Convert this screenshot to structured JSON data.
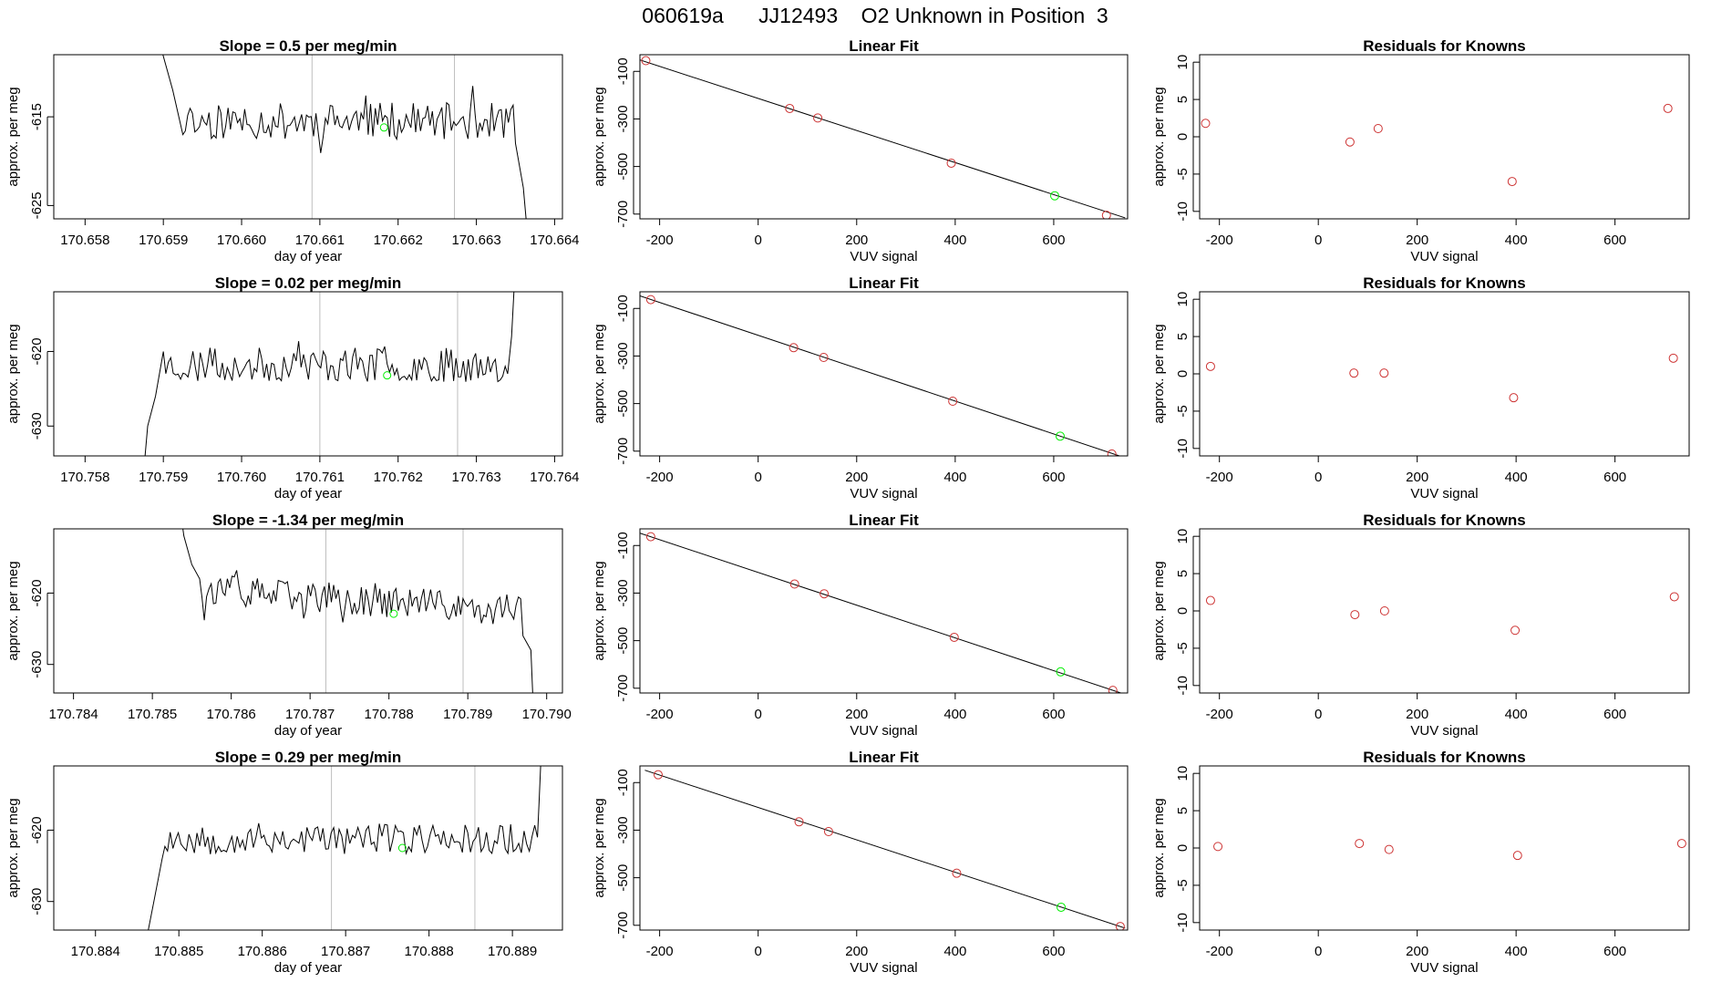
{
  "figure": {
    "title": "060619a      JJ12493    O2 Unknown in Position  3"
  },
  "colors": {
    "line": "#000000",
    "known_point": "#cd3333",
    "unknown_point": "#00ee00",
    "vline": "#bebebe"
  },
  "chart_data": [
    {
      "type": "line",
      "row": 1,
      "col": 1,
      "title": "Slope =  0.5  per meg/min",
      "xlabel": "day of year",
      "ylabel": "approx. per meg",
      "xlim": [
        170.6576,
        170.6641
      ],
      "ylim": [
        -626.5,
        -608.0
      ],
      "xticks": [
        170.658,
        170.659,
        170.66,
        170.661,
        170.662,
        170.663,
        170.664
      ],
      "xtick_labels": [
        "170.658",
        "170.659",
        "170.660",
        "170.661",
        "170.662",
        "170.663",
        "170.664"
      ],
      "yticks": [
        -625,
        -615
      ],
      "ytick_labels": [
        "-625",
        "-615"
      ],
      "trace": {
        "x_start": 170.6589,
        "x_end": 170.66365,
        "seed": 11,
        "base": -615.5,
        "noise": 2.1,
        "start": [
          [
            170.6589,
            -605
          ],
          [
            170.65912,
            -612
          ],
          [
            170.65925,
            -617
          ]
        ],
        "end": [
          [
            170.6635,
            -618
          ],
          [
            170.6636,
            -623
          ],
          [
            170.66365,
            -628
          ]
        ]
      },
      "vlines": [
        170.6609,
        170.66272
      ],
      "point": {
        "x": 170.66182,
        "y": -616.2
      }
    },
    {
      "type": "scatter",
      "row": 1,
      "col": 2,
      "title": "Linear Fit",
      "xlabel": "VUV signal",
      "ylabel": "approx. per meg",
      "xlim": [
        -240,
        750
      ],
      "ylim": [
        -720,
        -30
      ],
      "xticks": [
        -200,
        0,
        200,
        400,
        600
      ],
      "xtick_labels": [
        "-200",
        "0",
        "200",
        "400",
        "600"
      ],
      "yticks": [
        -100,
        -300,
        -500,
        -700
      ],
      "ytick_labels": [
        "-100",
        "-300",
        "-500",
        "-700"
      ],
      "knowns": [
        [
          -228,
          -55
        ],
        [
          64,
          -256
        ],
        [
          121,
          -296
        ],
        [
          392,
          -486
        ],
        [
          707,
          -705
        ]
      ],
      "unknown": [
        602,
        -623
      ],
      "fit_line": [
        [
          -240,
          -52
        ],
        [
          745,
          -716
        ]
      ]
    },
    {
      "type": "scatter",
      "row": 1,
      "col": 3,
      "title": "Residuals for Knowns",
      "xlabel": "VUV signal",
      "ylabel": "approx. per meg",
      "xlim": [
        -240,
        750
      ],
      "ylim": [
        -11,
        11
      ],
      "xticks": [
        -200,
        0,
        200,
        400,
        600
      ],
      "xtick_labels": [
        "-200",
        "0",
        "200",
        "400",
        "600"
      ],
      "yticks": [
        10,
        5,
        0,
        -5,
        -10
      ],
      "ytick_labels": [
        "10",
        "5",
        "0",
        "-5",
        "-10"
      ],
      "points": [
        [
          -228,
          1.8
        ],
        [
          64,
          -0.7
        ],
        [
          121,
          1.1
        ],
        [
          392,
          -6.0
        ],
        [
          707,
          3.8
        ]
      ]
    },
    {
      "type": "line",
      "row": 2,
      "col": 1,
      "title": "Slope =  0.02  per meg/min",
      "xlabel": "day of year",
      "ylabel": "approx. per meg",
      "xlim": [
        170.7576,
        170.7641
      ],
      "ylim": [
        -634.0,
        -612.0
      ],
      "xticks": [
        170.758,
        170.759,
        170.76,
        170.761,
        170.762,
        170.763,
        170.764
      ],
      "xtick_labels": [
        "170.758",
        "170.759",
        "170.760",
        "170.761",
        "170.762",
        "170.763",
        "170.764"
      ],
      "yticks": [
        -620,
        -630
      ],
      "ytick_labels": [
        "-620",
        "-630"
      ],
      "trace": {
        "x_start": 170.75875,
        "x_end": 170.7635,
        "seed": 23,
        "base": -621.8,
        "noise": 2.3,
        "start": [
          [
            170.75875,
            -636
          ],
          [
            170.7588,
            -630
          ],
          [
            170.7589,
            -626
          ],
          [
            170.759,
            -620
          ]
        ],
        "end": [
          [
            170.7634,
            -623
          ],
          [
            170.76345,
            -618
          ],
          [
            170.7635,
            -608
          ]
        ]
      },
      "vlines": [
        170.761,
        170.76276
      ],
      "point": {
        "x": 170.76186,
        "y": -623.2
      }
    },
    {
      "type": "scatter",
      "row": 2,
      "col": 2,
      "title": "Linear Fit",
      "xlabel": "VUV signal",
      "ylabel": "approx. per meg",
      "xlim": [
        -240,
        750
      ],
      "ylim": [
        -720,
        -30
      ],
      "xticks": [
        -200,
        0,
        200,
        400,
        600
      ],
      "xtick_labels": [
        "-200",
        "0",
        "200",
        "400",
        "600"
      ],
      "yticks": [
        -100,
        -300,
        -500,
        -700
      ],
      "ytick_labels": [
        "-100",
        "-300",
        "-500",
        "-700"
      ],
      "knowns": [
        [
          -218,
          -63
        ],
        [
          72,
          -265
        ],
        [
          133,
          -306
        ],
        [
          395,
          -490
        ],
        [
          718,
          -712
        ]
      ],
      "unknown": [
        613,
        -637
      ],
      "fit_line": [
        [
          -240,
          -47
        ],
        [
          745,
          -728
        ]
      ]
    },
    {
      "type": "scatter",
      "row": 2,
      "col": 3,
      "title": "Residuals for Knowns",
      "xlabel": "VUV signal",
      "ylabel": "approx. per meg",
      "xlim": [
        -240,
        750
      ],
      "ylim": [
        -11,
        11
      ],
      "xticks": [
        -200,
        0,
        200,
        400,
        600
      ],
      "xtick_labels": [
        "-200",
        "0",
        "200",
        "400",
        "600"
      ],
      "yticks": [
        10,
        5,
        0,
        -5,
        -10
      ],
      "ytick_labels": [
        "10",
        "5",
        "0",
        "-5",
        "-10"
      ],
      "points": [
        [
          -218,
          1.0
        ],
        [
          72,
          0.1
        ],
        [
          133,
          0.1
        ],
        [
          395,
          -3.2
        ],
        [
          718,
          2.1
        ]
      ]
    },
    {
      "type": "line",
      "row": 3,
      "col": 1,
      "title": "Slope =  -1.34  per meg/min",
      "xlabel": "day of year",
      "ylabel": "approx. per meg",
      "xlim": [
        170.78375,
        170.7902
      ],
      "ylim": [
        -634.0,
        -611.0
      ],
      "xticks": [
        170.784,
        170.785,
        170.786,
        170.787,
        170.788,
        170.789,
        170.79
      ],
      "xtick_labels": [
        "170.784",
        "170.785",
        "170.786",
        "170.787",
        "170.788",
        "170.789",
        "170.790"
      ],
      "yticks": [
        -620,
        -630
      ],
      "ytick_labels": [
        "-620",
        "-630"
      ],
      "trace": {
        "x_start": 170.78535,
        "x_end": 170.78983,
        "seed": 37,
        "base": -621.0,
        "noise": 2.2,
        "trend": -3.0,
        "start": [
          [
            170.78535,
            -608
          ],
          [
            170.7854,
            -612
          ],
          [
            170.7855,
            -616
          ],
          [
            170.7856,
            -618
          ]
        ],
        "end": [
          [
            170.7897,
            -626
          ],
          [
            170.7898,
            -628
          ],
          [
            170.78983,
            -636
          ]
        ]
      },
      "vlines": [
        170.7872,
        170.78894
      ],
      "point": {
        "x": 170.78806,
        "y": -622.9
      }
    },
    {
      "type": "scatter",
      "row": 3,
      "col": 2,
      "title": "Linear Fit",
      "xlabel": "VUV signal",
      "ylabel": "approx. per meg",
      "xlim": [
        -240,
        750
      ],
      "ylim": [
        -720,
        -30
      ],
      "xticks": [
        -200,
        0,
        200,
        400,
        600
      ],
      "xtick_labels": [
        "-200",
        "0",
        "200",
        "400",
        "600"
      ],
      "yticks": [
        -100,
        -300,
        -500,
        -700
      ],
      "ytick_labels": [
        "-100",
        "-300",
        "-500",
        "-700"
      ],
      "knowns": [
        [
          -218,
          -63
        ],
        [
          74,
          -262
        ],
        [
          134,
          -303
        ],
        [
          398,
          -486
        ],
        [
          720,
          -709
        ]
      ],
      "unknown": [
        614,
        -631
      ],
      "fit_line": [
        [
          -240,
          -48
        ],
        [
          745,
          -726
        ]
      ]
    },
    {
      "type": "scatter",
      "row": 3,
      "col": 3,
      "title": "Residuals for Knowns",
      "xlabel": "VUV signal",
      "ylabel": "approx. per meg",
      "xlim": [
        -240,
        750
      ],
      "ylim": [
        -11,
        11
      ],
      "xticks": [
        -200,
        0,
        200,
        400,
        600
      ],
      "xtick_labels": [
        "-200",
        "0",
        "200",
        "400",
        "600"
      ],
      "yticks": [
        10,
        5,
        0,
        -5,
        -10
      ],
      "ytick_labels": [
        "10",
        "5",
        "0",
        "-5",
        "-10"
      ],
      "points": [
        [
          -218,
          1.4
        ],
        [
          74,
          -0.5
        ],
        [
          134,
          0.0
        ],
        [
          398,
          -2.6
        ],
        [
          720,
          1.9
        ]
      ]
    },
    {
      "type": "line",
      "row": 4,
      "col": 1,
      "title": "Slope =  0.29  per meg/min",
      "xlabel": "day of year",
      "ylabel": "approx. per meg",
      "xlim": [
        170.8835,
        170.8896
      ],
      "ylim": [
        -634.0,
        -611.0
      ],
      "xticks": [
        170.884,
        170.885,
        170.886,
        170.887,
        170.888,
        170.889
      ],
      "xtick_labels": [
        "170.884",
        "170.885",
        "170.886",
        "170.887",
        "170.888",
        "170.889"
      ],
      "yticks": [
        -620,
        -630
      ],
      "ytick_labels": [
        "-620",
        "-630"
      ],
      "trace": {
        "x_start": 170.8846,
        "x_end": 170.88935,
        "seed": 53,
        "base": -621.2,
        "noise": 2.2,
        "start": [
          [
            170.8846,
            -636
          ],
          [
            170.8847,
            -630
          ],
          [
            170.8848,
            -624
          ]
        ],
        "end": [
          [
            170.8893,
            -621
          ],
          [
            170.88932,
            -616
          ],
          [
            170.88935,
            -608
          ]
        ]
      },
      "vlines": [
        170.88683,
        170.88855
      ],
      "point": {
        "x": 170.88768,
        "y": -622.5
      }
    },
    {
      "type": "scatter",
      "row": 4,
      "col": 2,
      "title": "Linear Fit",
      "xlabel": "VUV signal",
      "ylabel": "approx. per meg",
      "xlim": [
        -240,
        750
      ],
      "ylim": [
        -720,
        -30
      ],
      "xticks": [
        -200,
        0,
        200,
        400,
        600
      ],
      "xtick_labels": [
        "-200",
        "0",
        "200",
        "400",
        "600"
      ],
      "yticks": [
        -100,
        -300,
        -500,
        -700
      ],
      "ytick_labels": [
        "-100",
        "-300",
        "-500",
        "-700"
      ],
      "knowns": [
        [
          -203,
          -67
        ],
        [
          83,
          -265
        ],
        [
          143,
          -306
        ],
        [
          403,
          -481
        ],
        [
          735,
          -705
        ]
      ],
      "unknown": [
        615,
        -624
      ],
      "fit_line": [
        [
          -230,
          -48
        ],
        [
          745,
          -712
        ]
      ]
    },
    {
      "type": "scatter",
      "row": 4,
      "col": 3,
      "title": "Residuals for Knowns",
      "xlabel": "VUV signal",
      "ylabel": "approx. per meg",
      "xlim": [
        -240,
        750
      ],
      "ylim": [
        -11,
        11
      ],
      "xticks": [
        -200,
        0,
        200,
        400,
        600
      ],
      "xtick_labels": [
        "-200",
        "0",
        "200",
        "400",
        "600"
      ],
      "yticks": [
        10,
        5,
        0,
        -5,
        -10
      ],
      "ytick_labels": [
        "10",
        "5",
        "0",
        "-5",
        "-10"
      ],
      "points": [
        [
          -203,
          0.2
        ],
        [
          83,
          0.6
        ],
        [
          143,
          -0.2
        ],
        [
          403,
          -1.0
        ],
        [
          735,
          0.6
        ]
      ]
    }
  ]
}
